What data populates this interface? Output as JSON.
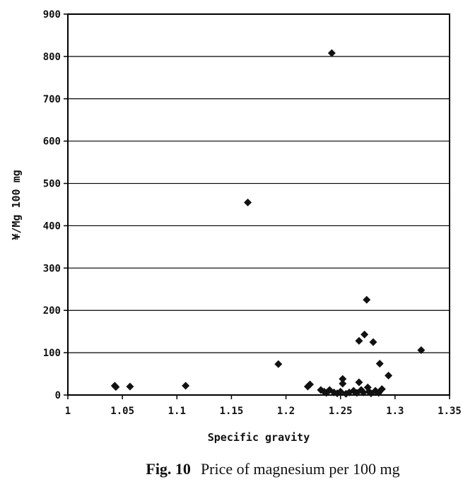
{
  "chart_data": {
    "type": "scatter",
    "title": "",
    "caption": {
      "figure": "Fig. 10",
      "text": "Price of magnesium per 100 mg"
    },
    "xlabel": "Specific gravity",
    "ylabel": "¥/Mg 100 mg",
    "xlim": [
      1,
      1.35
    ],
    "ylim": [
      0,
      900
    ],
    "x_ticks": [
      "1",
      "1.05",
      "1.1",
      "1.15",
      "1.2",
      "1.25",
      "1.3",
      "1.35"
    ],
    "y_ticks": [
      "0",
      "100",
      "200",
      "300",
      "400",
      "500",
      "600",
      "700",
      "800",
      "900"
    ],
    "grid": "horizontal",
    "marker": "diamond",
    "color": "#111111",
    "points": [
      {
        "x": 1.043,
        "y": 22
      },
      {
        "x": 1.044,
        "y": 19
      },
      {
        "x": 1.057,
        "y": 20
      },
      {
        "x": 1.108,
        "y": 22
      },
      {
        "x": 1.165,
        "y": 455
      },
      {
        "x": 1.193,
        "y": 73
      },
      {
        "x": 1.22,
        "y": 20
      },
      {
        "x": 1.222,
        "y": 25
      },
      {
        "x": 1.232,
        "y": 12
      },
      {
        "x": 1.235,
        "y": 8
      },
      {
        "x": 1.237,
        "y": 5
      },
      {
        "x": 1.24,
        "y": 12
      },
      {
        "x": 1.242,
        "y": 808
      },
      {
        "x": 1.244,
        "y": 6
      },
      {
        "x": 1.247,
        "y": 4
      },
      {
        "x": 1.25,
        "y": 8
      },
      {
        "x": 1.252,
        "y": 38
      },
      {
        "x": 1.252,
        "y": 27
      },
      {
        "x": 1.255,
        "y": 3
      },
      {
        "x": 1.258,
        "y": 6
      },
      {
        "x": 1.262,
        "y": 10
      },
      {
        "x": 1.265,
        "y": 5
      },
      {
        "x": 1.267,
        "y": 128
      },
      {
        "x": 1.267,
        "y": 30
      },
      {
        "x": 1.269,
        "y": 12
      },
      {
        "x": 1.271,
        "y": 6
      },
      {
        "x": 1.272,
        "y": 143
      },
      {
        "x": 1.274,
        "y": 225
      },
      {
        "x": 1.275,
        "y": 18
      },
      {
        "x": 1.276,
        "y": 8
      },
      {
        "x": 1.278,
        "y": 4
      },
      {
        "x": 1.28,
        "y": 125
      },
      {
        "x": 1.282,
        "y": 10
      },
      {
        "x": 1.285,
        "y": 5
      },
      {
        "x": 1.286,
        "y": 74
      },
      {
        "x": 1.288,
        "y": 14
      },
      {
        "x": 1.294,
        "y": 46
      },
      {
        "x": 1.324,
        "y": 106
      }
    ]
  }
}
